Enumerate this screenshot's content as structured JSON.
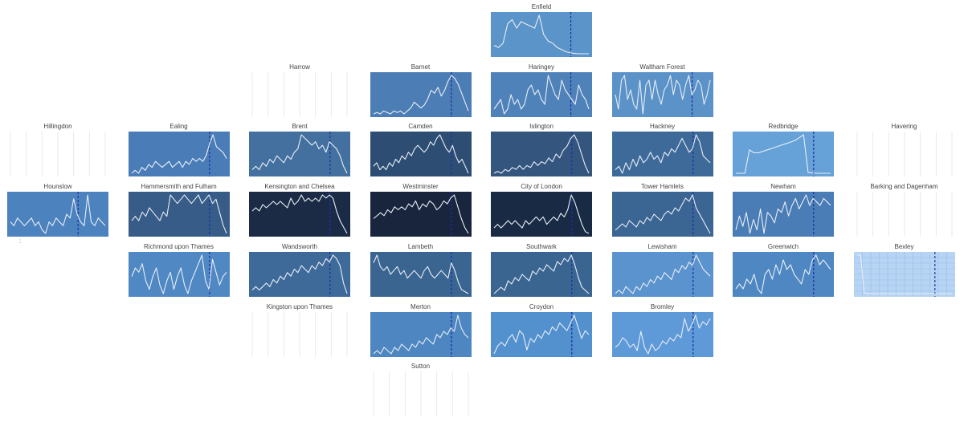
{
  "chart_data": {
    "type": "line",
    "title": "",
    "colors": {
      "line": "#e8eef6",
      "vline": "#1c2fa8",
      "empty_grid": "#e9e9e9",
      "bexley_fill": "#b6d4f4",
      "bexley_grid": "#9cbce2"
    },
    "panels": [
      {
        "name": "Enfield",
        "col": 4,
        "row": 0,
        "fill": "#5b94c9",
        "vline": 0.79,
        "values": [
          4,
          3,
          5,
          14,
          16,
          12,
          15,
          14,
          13,
          12,
          18,
          9,
          6,
          5,
          3,
          2,
          1,
          0.5,
          0.2,
          0.1,
          0.1,
          0.1
        ]
      },
      {
        "name": "Harrow",
        "col": 2,
        "row": 1,
        "empty": true
      },
      {
        "name": "Barnet",
        "col": 3,
        "row": 1,
        "fill": "#4c7db5",
        "vline": 0.8,
        "values": [
          1,
          1.5,
          1,
          2,
          1.5,
          1,
          2,
          1.5,
          2,
          1,
          2,
          3,
          5,
          4,
          3,
          4,
          6,
          9,
          8,
          10,
          7,
          9,
          12,
          14,
          13,
          11,
          8,
          5,
          2
        ]
      },
      {
        "name": "Haringey",
        "col": 4,
        "row": 1,
        "fill": "#4f82b9",
        "vline": 0.79,
        "values": [
          7,
          8,
          9,
          6,
          7,
          10,
          8,
          9,
          7,
          8,
          11,
          12,
          10,
          11,
          9,
          8,
          14,
          12,
          10,
          9,
          13,
          11,
          10,
          9,
          8,
          12,
          10,
          9,
          7
        ]
      },
      {
        "name": "Waltham Forest",
        "col": 5,
        "row": 1,
        "fill": "#5b92c8",
        "vline": 0.79,
        "values": [
          9,
          6,
          12,
          13,
          8,
          10,
          7,
          6,
          12,
          5,
          11,
          12,
          8,
          12,
          9,
          7,
          10,
          11,
          13,
          9,
          12,
          11,
          8,
          11,
          13,
          9,
          10,
          12,
          11,
          7,
          9,
          12
        ]
      },
      {
        "name": "Hillingdon",
        "col": 0,
        "row": 2,
        "empty": true
      },
      {
        "name": "Ealing",
        "col": 1,
        "row": 2,
        "fill": "#4a7db7",
        "vline": 0.8,
        "values": [
          1,
          2,
          1,
          3,
          2,
          4,
          3,
          5,
          4,
          3,
          4,
          5,
          3,
          4,
          5,
          3,
          5,
          4,
          6,
          5,
          6,
          5,
          7,
          11,
          14,
          10,
          9,
          8,
          6
        ]
      },
      {
        "name": "Brent",
        "col": 2,
        "row": 2,
        "fill": "#43709e",
        "vline": 0.8,
        "values": [
          2,
          3,
          2,
          4,
          3,
          5,
          4,
          6,
          5,
          4,
          6,
          5,
          7,
          8,
          12,
          11,
          10,
          9,
          10,
          8,
          9,
          7,
          10,
          9,
          8,
          6,
          3,
          1
        ]
      },
      {
        "name": "Camden",
        "col": 3,
        "row": 2,
        "fill": "#2d4d73",
        "vline": 0.8,
        "values": [
          4,
          5,
          3,
          4,
          3,
          5,
          4,
          6,
          5,
          7,
          6,
          8,
          7,
          9,
          10,
          9,
          8,
          9,
          11,
          10,
          12,
          13,
          11,
          9,
          8,
          10,
          7,
          5,
          6,
          4,
          2
        ]
      },
      {
        "name": "Islington",
        "col": 4,
        "row": 2,
        "fill": "#33557e",
        "vline": 0.8,
        "values": [
          1,
          1.5,
          1,
          2,
          1.5,
          2.5,
          2,
          3,
          2,
          3,
          2.5,
          4,
          3,
          4,
          3.5,
          5,
          4,
          6,
          5,
          7,
          8,
          10,
          11,
          9,
          6,
          3,
          1
        ]
      },
      {
        "name": "Hackney",
        "col": 5,
        "row": 2,
        "fill": "#3e6a9a",
        "vline": 0.8,
        "values": [
          3,
          4,
          2,
          5,
          3,
          6,
          4,
          7,
          5,
          6,
          8,
          6,
          7,
          5,
          8,
          7,
          9,
          8,
          10,
          12,
          10,
          8,
          9,
          13,
          11,
          7,
          6,
          5
        ]
      },
      {
        "name": "Redbridge",
        "col": 6,
        "row": 2,
        "fill": "#66a1d7",
        "vline": 0.8,
        "values": [
          0.2,
          0.2,
          0.2,
          8,
          7,
          7,
          7.5,
          8,
          8.5,
          9,
          9.5,
          10,
          10.5,
          11,
          12,
          13,
          0.5,
          0.3,
          0.2,
          0.2,
          0.2,
          0.2
        ]
      },
      {
        "name": "Havering",
        "col": 7,
        "row": 2,
        "empty": true
      },
      {
        "name": "Hounslow",
        "col": 0,
        "row": 3,
        "fill": "#4c82bd",
        "vline": 0.7,
        "values": [
          5,
          4,
          6,
          5,
          4,
          5,
          6,
          4,
          5,
          3,
          2,
          5,
          4,
          6,
          5,
          4,
          7,
          6,
          11,
          7,
          5,
          4,
          12,
          5,
          4,
          6,
          5,
          4
        ]
      },
      {
        "name": "Hammersmith and Fulham",
        "col": 1,
        "row": 3,
        "fill": "#375c87",
        "vline": 0.8,
        "values": [
          5,
          6,
          5,
          7,
          6,
          8,
          7,
          6,
          5,
          7,
          6,
          11,
          10,
          9,
          10,
          11,
          10,
          9,
          10,
          11,
          9,
          10,
          11,
          9,
          10,
          7,
          4,
          2
        ]
      },
      {
        "name": "Kensington and Chelsea",
        "col": 2,
        "row": 3,
        "fill": "#1b2b45",
        "vline": 0.8,
        "values": [
          8,
          9,
          8,
          10,
          9,
          10,
          11,
          10,
          11,
          10,
          9,
          12,
          10,
          11,
          13,
          11,
          12,
          11,
          12,
          11,
          13,
          12,
          13,
          12,
          8,
          5,
          3,
          1
        ]
      },
      {
        "name": "Westminster",
        "col": 3,
        "row": 3,
        "fill": "#19253d",
        "vline": 0.8,
        "values": [
          6,
          7,
          8,
          7,
          9,
          8,
          10,
          9,
          10,
          9,
          11,
          10,
          12,
          9,
          11,
          10,
          12,
          11,
          9,
          10,
          12,
          11,
          13,
          14,
          10,
          6,
          3,
          1
        ]
      },
      {
        "name": "City of London",
        "col": 4,
        "row": 3,
        "fill": "#192a44",
        "vline": 0.8,
        "values": [
          2,
          3,
          2,
          3,
          4,
          3,
          4,
          3,
          2,
          4,
          3,
          4,
          5,
          4,
          5,
          3,
          4,
          5,
          4,
          6,
          5,
          7,
          11,
          9,
          6,
          3,
          1,
          0.5
        ]
      },
      {
        "name": "Tower Hamlets",
        "col": 5,
        "row": 3,
        "fill": "#3b6593",
        "vline": 0.8,
        "values": [
          2,
          3,
          4,
          3,
          5,
          4,
          3,
          5,
          4,
          6,
          5,
          7,
          6,
          5,
          7,
          8,
          7,
          9,
          8,
          10,
          12,
          11,
          13,
          9,
          7,
          5,
          3,
          1
        ]
      },
      {
        "name": "Newham",
        "col": 6,
        "row": 3,
        "fill": "#4a7db5",
        "vline": 0.8,
        "values": [
          3,
          7,
          4,
          8,
          2,
          6,
          3,
          9,
          2,
          8,
          7,
          5,
          9,
          8,
          11,
          7,
          10,
          12,
          9,
          11,
          13,
          10,
          12,
          11,
          10,
          12,
          11,
          10
        ]
      },
      {
        "name": "Barking and Dagenham",
        "col": 7,
        "row": 3,
        "empty": true
      },
      {
        "name": "Richmond upon Thames",
        "col": 1,
        "row": 4,
        "fill": "#5088c4",
        "vline": 0.8,
        "values": [
          6,
          8,
          7,
          9,
          5,
          3,
          6,
          8,
          4,
          2,
          5,
          7,
          3,
          6,
          8,
          4,
          2,
          5,
          7,
          9,
          11,
          5,
          3,
          10,
          7,
          4,
          6,
          7
        ]
      },
      {
        "name": "Wandsworth",
        "col": 2,
        "row": 4,
        "fill": "#3e6a9a",
        "vline": 0.8,
        "values": [
          2,
          3,
          2,
          3,
          4,
          3,
          5,
          4,
          6,
          5,
          7,
          6,
          8,
          7,
          9,
          8,
          7,
          9,
          8,
          10,
          9,
          11,
          10,
          12,
          11,
          9,
          4,
          1
        ]
      },
      {
        "name": "Lambeth",
        "col": 3,
        "row": 4,
        "fill": "#3a6591",
        "vline": 0.8,
        "values": [
          9,
          11,
          8,
          7,
          8,
          6,
          7,
          8,
          6,
          7,
          5,
          6,
          7,
          6,
          5,
          7,
          8,
          6,
          5,
          6,
          7,
          6,
          5,
          9,
          7,
          4,
          2,
          1.5,
          1
        ]
      },
      {
        "name": "Southwark",
        "col": 4,
        "row": 4,
        "fill": "#3b6591",
        "vline": 0.8,
        "values": [
          1,
          2,
          3,
          2,
          5,
          4,
          6,
          5,
          7,
          6,
          5,
          8,
          7,
          9,
          8,
          10,
          9,
          8,
          11,
          10,
          12,
          11,
          13,
          10,
          6,
          3,
          2,
          1
        ]
      },
      {
        "name": "Lewisham",
        "col": 5,
        "row": 4,
        "fill": "#5a93cd",
        "vline": 0.8,
        "values": [
          2,
          3,
          2,
          4,
          3,
          2,
          4,
          3,
          5,
          4,
          6,
          5,
          7,
          6,
          8,
          7,
          6,
          9,
          8,
          10,
          9,
          11,
          10,
          13,
          11,
          9,
          8,
          7
        ]
      },
      {
        "name": "Greenwich",
        "col": 6,
        "row": 4,
        "fill": "#4e87c2",
        "vline": 0.8,
        "values": [
          5,
          6,
          5,
          7,
          6,
          8,
          5,
          4,
          8,
          9,
          7,
          10,
          8,
          11,
          9,
          10,
          8,
          7,
          6,
          9,
          8,
          11,
          12,
          10,
          11,
          10,
          9
        ]
      },
      {
        "name": "Bexley",
        "col": 7,
        "row": 4,
        "fill": "#b6d4f4",
        "grid": true,
        "vline": 0.8,
        "values": [
          14,
          14,
          0.5,
          0.3,
          0.2,
          0.2,
          0.2,
          0.2,
          0.2,
          0.2,
          0.2,
          0.2,
          0.2,
          0.2,
          0.2,
          0.2,
          0.2,
          0.2,
          0.2,
          0.2,
          0.2,
          0.2,
          0.2,
          0.2,
          0.2,
          0.2,
          0.2,
          0.2
        ]
      },
      {
        "name": "Kingston upon Thames",
        "col": 2,
        "row": 5,
        "empty": true
      },
      {
        "name": "Merton",
        "col": 3,
        "row": 5,
        "fill": "#4d86c0",
        "vline": 0.8,
        "values": [
          2,
          3,
          2,
          4,
          3,
          2,
          4,
          3,
          5,
          4,
          3,
          5,
          4,
          6,
          5,
          7,
          6,
          5,
          8,
          7,
          9,
          8,
          10,
          9,
          14,
          10,
          8,
          7
        ]
      },
      {
        "name": "Croydon",
        "col": 4,
        "row": 5,
        "fill": "#5391ce",
        "vline": 0.8,
        "values": [
          3,
          5,
          6,
          5,
          7,
          8,
          6,
          9,
          8,
          4,
          7,
          6,
          8,
          7,
          9,
          8,
          10,
          9,
          11,
          10,
          9,
          11,
          13,
          10,
          7,
          9,
          8
        ]
      },
      {
        "name": "Bromley",
        "col": 5,
        "row": 5,
        "fill": "#5f9ad8",
        "vline": 0.8,
        "values": [
          4,
          5,
          7,
          6,
          4,
          5,
          3,
          9,
          4,
          2,
          5,
          3,
          4,
          6,
          5,
          7,
          6,
          8,
          7,
          13,
          9,
          11,
          14,
          10,
          12,
          11,
          13
        ]
      },
      {
        "name": "Sutton",
        "col": 3,
        "row": 6,
        "empty": true
      }
    ]
  }
}
